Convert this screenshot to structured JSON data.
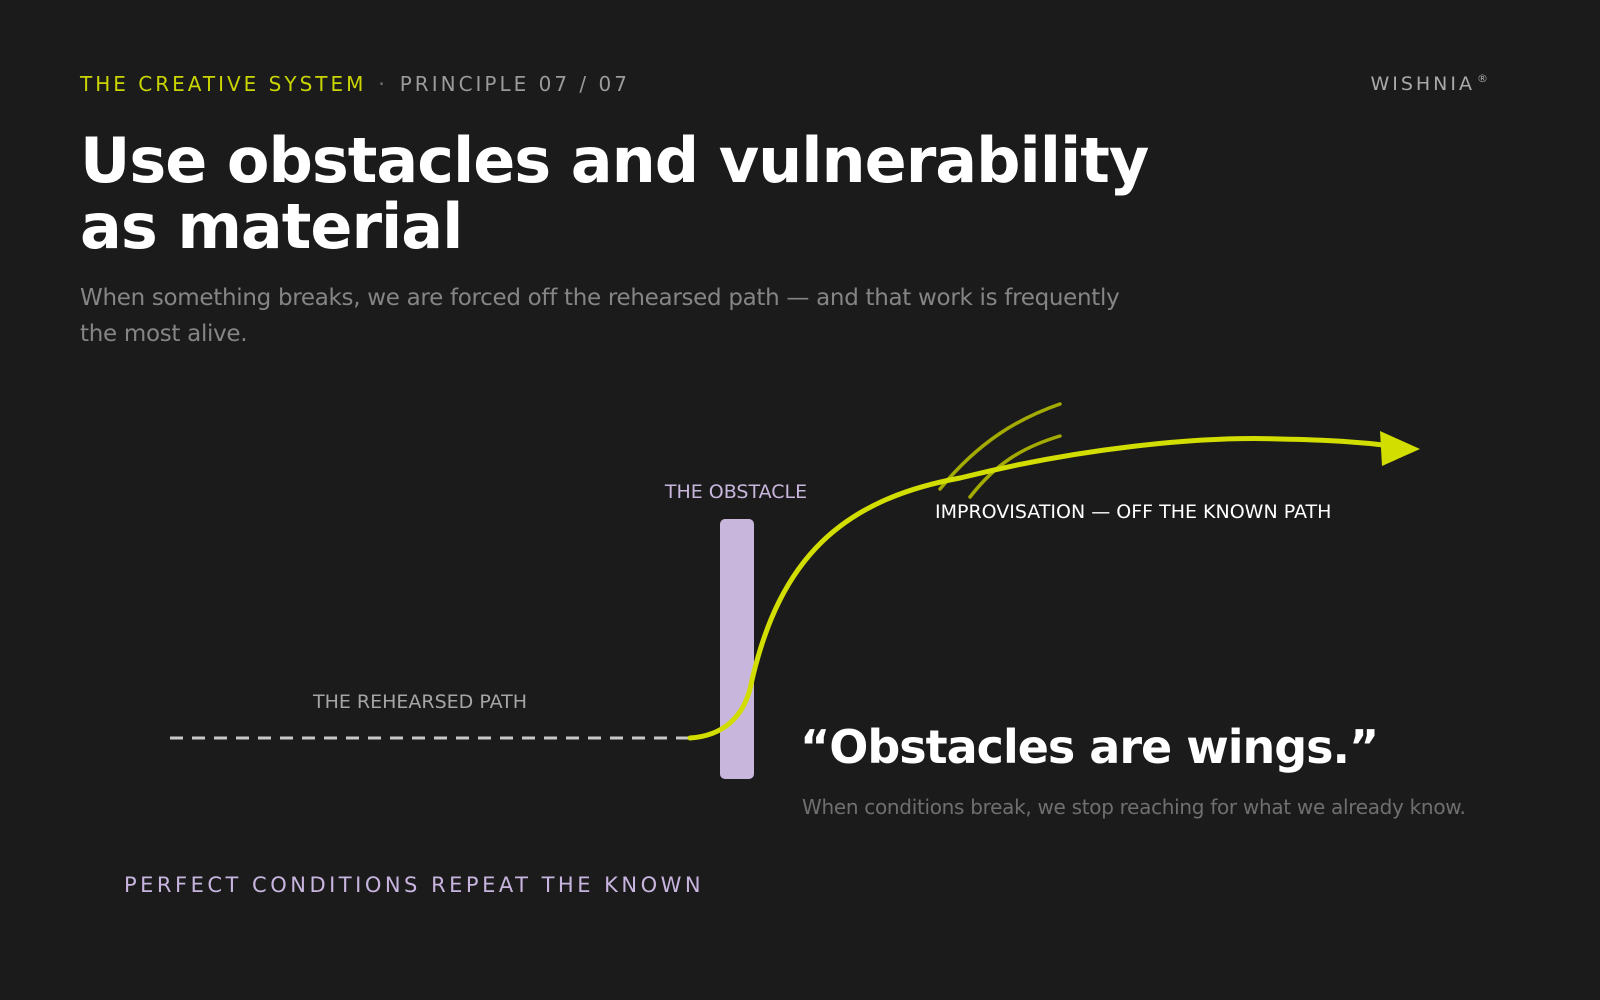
{
  "header": {
    "section": "THE CREATIVE SYSTEM",
    "separator": "·",
    "principle": "PRINCIPLE 07 / 07",
    "brand": "WISHNIA",
    "brand_mark": "®"
  },
  "title": "Use obstacles and vulnerability as material",
  "subtitle": "When something breaks, we are forced off the rehearsed path — and that work is frequently the most alive.",
  "diagram": {
    "obstacle_label": "THE OBSTACLE",
    "rehearsed_label": "THE REHEARSED PATH",
    "improvisation_label": "IMPROVISATION — OFF THE KNOWN PATH",
    "arrow_icon": "arrowhead-icon"
  },
  "quote": {
    "text": "“Obstacles are wings.”",
    "caption": "When conditions break, we stop reaching for what we already know."
  },
  "footer": "PERFECT CONDITIONS REPEAT THE KNOWN",
  "colors": {
    "background": "#1b1b1b",
    "accent": "#c9d400",
    "obstacle": "#c9b6dc",
    "text": "#ffffff",
    "muted": "#858585"
  }
}
